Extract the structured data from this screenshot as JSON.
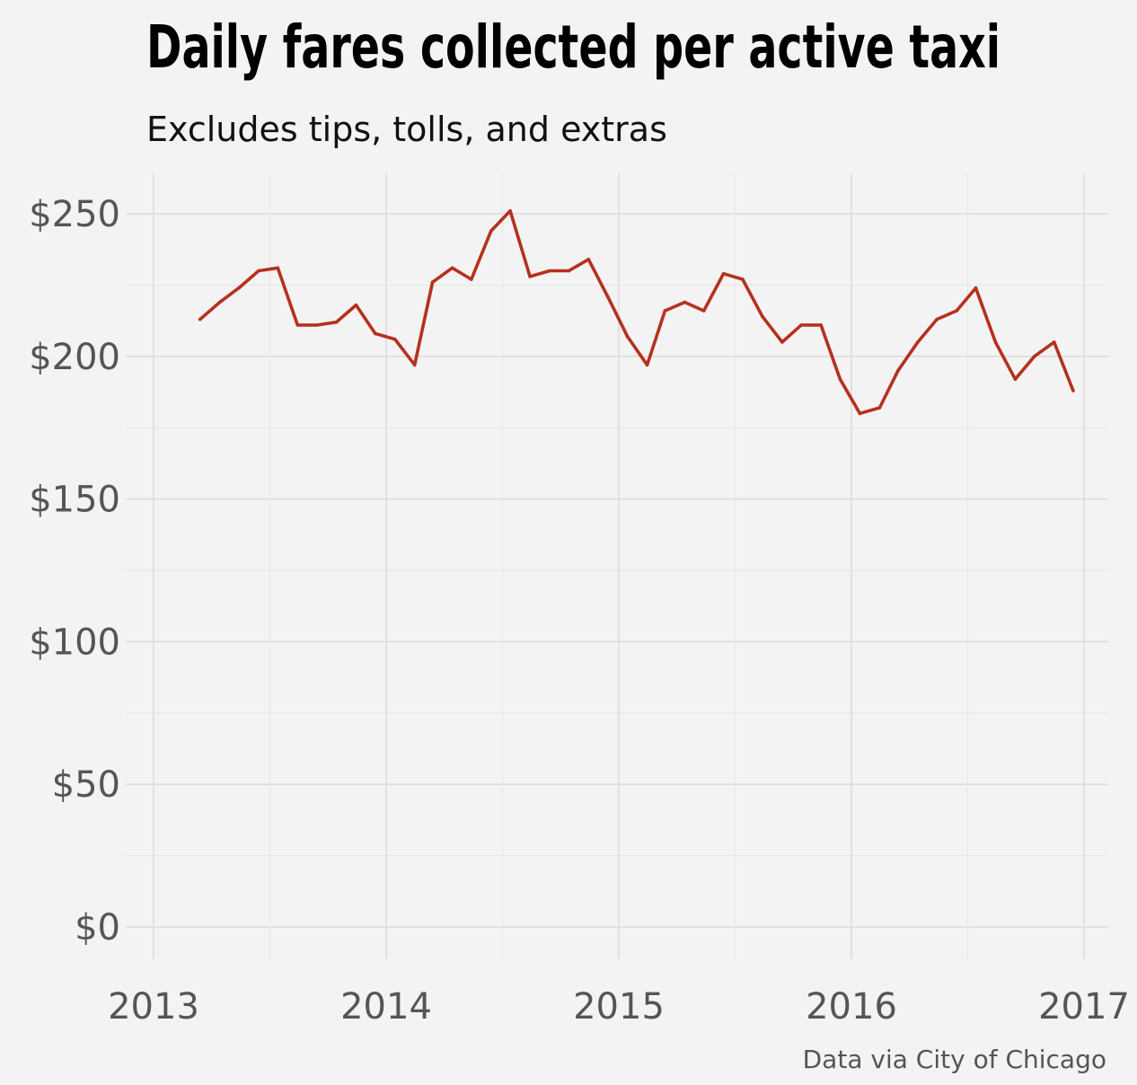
{
  "title": "Daily fares collected per active taxi",
  "subtitle": "Excludes tips, tolls, and extras",
  "caption": "Data via City of Chicago",
  "chart_data": {
    "type": "line",
    "title": "Daily fares collected per active taxi",
    "subtitle": "Excludes tips, tolls, and extras",
    "xlabel": "",
    "ylabel": "",
    "xlim": [
      "2013-01-01",
      "2017-01-01"
    ],
    "ylim": [
      0,
      260
    ],
    "x_ticks": [
      "2013",
      "2014",
      "2015",
      "2016",
      "2017"
    ],
    "y_ticks": [
      "$0",
      "$50",
      "$100",
      "$150",
      "$200",
      "$250"
    ],
    "y_tick_values": [
      0,
      50,
      100,
      150,
      200,
      250
    ],
    "grid": true,
    "line_color": "#b5311f",
    "series": [
      {
        "x": [
          "2013-03-15",
          "2013-04-15",
          "2013-05-15",
          "2013-06-15",
          "2013-07-15",
          "2013-08-15",
          "2013-09-15",
          "2013-10-15",
          "2013-11-15",
          "2013-12-15",
          "2014-01-15",
          "2014-02-15",
          "2014-03-15",
          "2014-04-15",
          "2014-05-15",
          "2014-06-15",
          "2014-07-15",
          "2014-08-15",
          "2014-09-15",
          "2014-10-15",
          "2014-11-15",
          "2014-12-15",
          "2015-01-15",
          "2015-02-15",
          "2015-03-15",
          "2015-04-15",
          "2015-05-15",
          "2015-06-15",
          "2015-07-15",
          "2015-08-15",
          "2015-09-15",
          "2015-10-15",
          "2015-11-15",
          "2015-12-15",
          "2016-01-15",
          "2016-02-15",
          "2016-03-15",
          "2016-04-15",
          "2016-05-15",
          "2016-06-15",
          "2016-07-15",
          "2016-08-15",
          "2016-09-15",
          "2016-10-15",
          "2016-11-15",
          "2016-12-15"
        ],
        "values": [
          213,
          219,
          224,
          230,
          231,
          211,
          211,
          212,
          218,
          208,
          206,
          197,
          226,
          231,
          227,
          244,
          251,
          228,
          230,
          230,
          234,
          221,
          207,
          197,
          216,
          219,
          216,
          229,
          227,
          214,
          205,
          211,
          211,
          192,
          180,
          182,
          195,
          205,
          213,
          216,
          224,
          205,
          192,
          200,
          205,
          188
        ]
      }
    ]
  }
}
